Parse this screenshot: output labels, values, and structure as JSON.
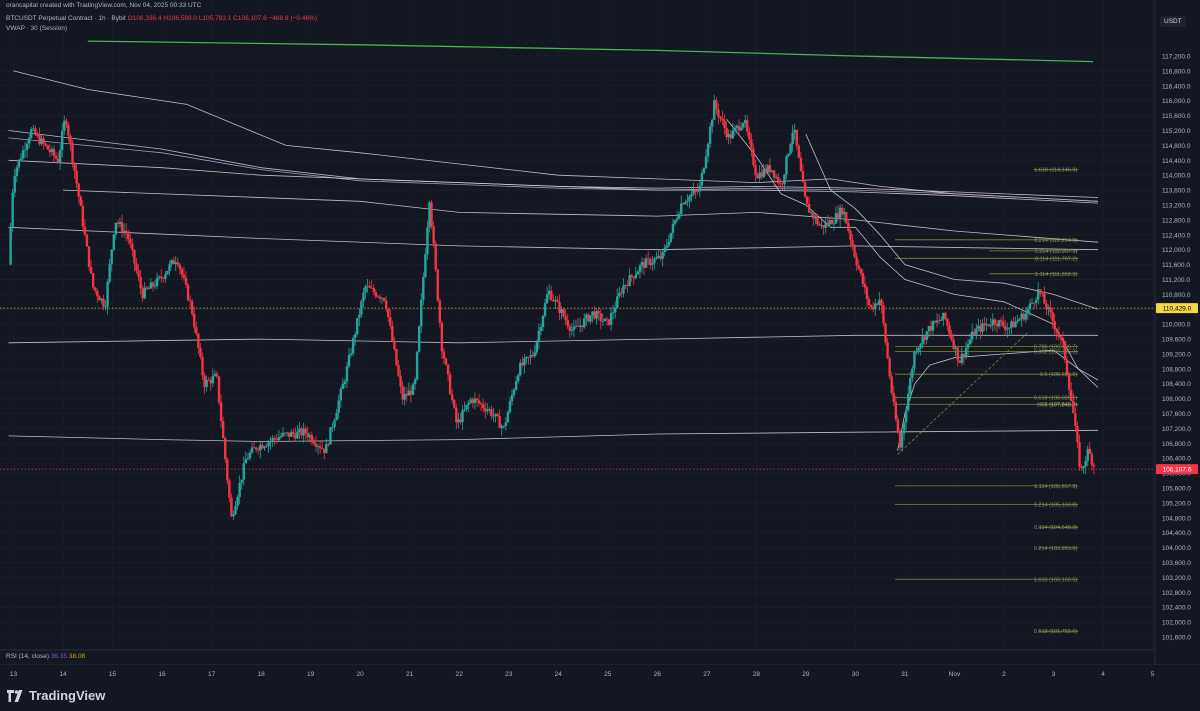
{
  "header": {
    "publisher_line": "orancapital created with TradingView.com, Nov 04, 2025 00:33 UTC",
    "symbol_line": "BTCUSDT Perpetual Contract · 1h · Bybit",
    "ohlc": "O106,336.4 H106,589.0 L105,783.1 C106,107.6 −488.8 (−0.46%)",
    "indicator_line": "VWAP · 30 (Session)",
    "currency": "USDT"
  },
  "rsi": {
    "label": "RSI (14, close)",
    "value1": "36.35",
    "value2": "38.08"
  },
  "brand": {
    "name": "TradingView"
  },
  "colors": {
    "up": "#26a69a",
    "down": "#f23645",
    "background": "#131722",
    "vwap_green": "#4caf50",
    "anchored_vwap": "#d9d9e3",
    "fib": "#9aa73a"
  },
  "chart_data": {
    "type": "candlestick",
    "title": "BTCUSDT Perpetual Contract · 1h · Bybit",
    "ylim": [
      101300,
      117600
    ],
    "y_ticks": [
      "117,200.0",
      "116,800.0",
      "116,400.0",
      "116,000.0",
      "115,600.0",
      "115,200.0",
      "114,800.0",
      "114,400.0",
      "114,000.0",
      "113,600.0",
      "113,200.0",
      "112,800.0",
      "112,400.0",
      "112,000.0",
      "111,600.0",
      "111,200.0",
      "110,800.0",
      "110,400.0",
      "110,000.0",
      "109,600.0",
      "109,200.0",
      "108,800.0",
      "108,400.0",
      "108,000.0",
      "107,600.0",
      "107,200.0",
      "106,800.0",
      "106,400.0",
      "106,000.0",
      "105,600.0",
      "105,200.0",
      "104,800.0",
      "104,400.0",
      "104,000.0",
      "103,600.0",
      "103,200.0",
      "102,800.0",
      "102,400.0",
      "102,000.0",
      "101,600.0"
    ],
    "x_ticks": [
      "13",
      "14",
      "15",
      "16",
      "17",
      "18",
      "19",
      "20",
      "21",
      "22",
      "23",
      "24",
      "25",
      "26",
      "27",
      "28",
      "29",
      "30",
      "31",
      "Nov",
      "2",
      "3",
      "4",
      "5"
    ],
    "price_labels": [
      {
        "text": "110,429.0",
        "value": 110429,
        "color": "#f5d742",
        "text_color": "#000000"
      },
      {
        "text": "106,107.6",
        "value": 106107.6,
        "color": "#f23645",
        "text_color": "#ffffff"
      }
    ],
    "anchors": [
      {
        "day": 12.9,
        "price": 111600
      },
      {
        "day": 13.0,
        "price": 114000
      },
      {
        "day": 13.35,
        "price": 115200
      },
      {
        "day": 13.9,
        "price": 114400
      },
      {
        "day": 14.05,
        "price": 115600
      },
      {
        "day": 14.25,
        "price": 114000
      },
      {
        "day": 14.6,
        "price": 111000
      },
      {
        "day": 14.85,
        "price": 110500
      },
      {
        "day": 15.05,
        "price": 112800
      },
      {
        "day": 15.3,
        "price": 112400
      },
      {
        "day": 15.6,
        "price": 110800
      },
      {
        "day": 15.95,
        "price": 111200
      },
      {
        "day": 16.3,
        "price": 111800
      },
      {
        "day": 16.6,
        "price": 110400
      },
      {
        "day": 16.85,
        "price": 108400
      },
      {
        "day": 17.1,
        "price": 108600
      },
      {
        "day": 17.4,
        "price": 104800
      },
      {
        "day": 17.7,
        "price": 106400
      },
      {
        "day": 17.9,
        "price": 106700
      },
      {
        "day": 18.4,
        "price": 107000
      },
      {
        "day": 18.9,
        "price": 107100
      },
      {
        "day": 19.3,
        "price": 106600
      },
      {
        "day": 19.7,
        "price": 108600
      },
      {
        "day": 20.1,
        "price": 111000
      },
      {
        "day": 20.5,
        "price": 110700
      },
      {
        "day": 20.85,
        "price": 108000
      },
      {
        "day": 21.1,
        "price": 108300
      },
      {
        "day": 21.4,
        "price": 113400
      },
      {
        "day": 21.65,
        "price": 109400
      },
      {
        "day": 21.95,
        "price": 107300
      },
      {
        "day": 22.25,
        "price": 108000
      },
      {
        "day": 22.6,
        "price": 107700
      },
      {
        "day": 22.9,
        "price": 107200
      },
      {
        "day": 23.2,
        "price": 108800
      },
      {
        "day": 23.5,
        "price": 109200
      },
      {
        "day": 23.8,
        "price": 110900
      },
      {
        "day": 24.3,
        "price": 109800
      },
      {
        "day": 24.7,
        "price": 110300
      },
      {
        "day": 25.0,
        "price": 110000
      },
      {
        "day": 25.3,
        "price": 111000
      },
      {
        "day": 25.7,
        "price": 111600
      },
      {
        "day": 26.1,
        "price": 111800
      },
      {
        "day": 26.5,
        "price": 113300
      },
      {
        "day": 26.85,
        "price": 113600
      },
      {
        "day": 27.15,
        "price": 115900
      },
      {
        "day": 27.45,
        "price": 115000
      },
      {
        "day": 27.75,
        "price": 115500
      },
      {
        "day": 28.0,
        "price": 114000
      },
      {
        "day": 28.3,
        "price": 114200
      },
      {
        "day": 28.5,
        "price": 113700
      },
      {
        "day": 28.75,
        "price": 115300
      },
      {
        "day": 29.0,
        "price": 113200
      },
      {
        "day": 29.3,
        "price": 112600
      },
      {
        "day": 29.55,
        "price": 112800
      },
      {
        "day": 29.75,
        "price": 113100
      },
      {
        "day": 30.0,
        "price": 111800
      },
      {
        "day": 30.3,
        "price": 110400
      },
      {
        "day": 30.5,
        "price": 110700
      },
      {
        "day": 30.75,
        "price": 108000
      },
      {
        "day": 30.9,
        "price": 106700
      },
      {
        "day": 31.2,
        "price": 109300
      },
      {
        "day": 31.5,
        "price": 109900
      },
      {
        "day": 31.8,
        "price": 110200
      },
      {
        "day": 32.1,
        "price": 109000
      },
      {
        "day": 32.4,
        "price": 109800
      },
      {
        "day": 32.8,
        "price": 110100
      },
      {
        "day": 33.1,
        "price": 109900
      },
      {
        "day": 33.45,
        "price": 110300
      },
      {
        "day": 33.7,
        "price": 110900
      },
      {
        "day": 33.95,
        "price": 110200
      },
      {
        "day": 34.2,
        "price": 109400
      },
      {
        "day": 34.4,
        "price": 107600
      },
      {
        "day": 34.55,
        "price": 106000
      },
      {
        "day": 34.7,
        "price": 106600
      },
      {
        "day": 34.85,
        "price": 106100
      }
    ],
    "seed": 7,
    "horizontal_lines": [
      {
        "value": 110429,
        "style": "dotted",
        "color": "#c9a227"
      },
      {
        "value": 106107.6,
        "style": "dotted",
        "color": "#f23645"
      }
    ],
    "vwap_green": [
      {
        "day": 14.5,
        "price": 117600
      },
      {
        "day": 20,
        "price": 117500
      },
      {
        "day": 26,
        "price": 117350
      },
      {
        "day": 30,
        "price": 117200
      },
      {
        "day": 34.8,
        "price": 117050
      }
    ],
    "anchored_vwaps": [
      {
        "points": [
          {
            "day": 13.0,
            "price": 116800
          },
          {
            "day": 14.5,
            "price": 116300
          },
          {
            "day": 16.5,
            "price": 115900
          },
          {
            "day": 18.5,
            "price": 114800
          },
          {
            "day": 20,
            "price": 114600
          },
          {
            "day": 22,
            "price": 114300
          },
          {
            "day": 24,
            "price": 114000
          },
          {
            "day": 26,
            "price": 113900
          },
          {
            "day": 28,
            "price": 113800
          },
          {
            "day": 29.5,
            "price": 113900
          },
          {
            "day": 30.5,
            "price": 113700
          },
          {
            "day": 32,
            "price": 113500
          },
          {
            "day": 34.9,
            "price": 113300
          }
        ]
      },
      {
        "points": [
          {
            "day": 12.9,
            "price": 115200
          },
          {
            "day": 16,
            "price": 114700
          },
          {
            "day": 18,
            "price": 114200
          },
          {
            "day": 20,
            "price": 113900
          },
          {
            "day": 22,
            "price": 113800
          },
          {
            "day": 24,
            "price": 113700
          },
          {
            "day": 26,
            "price": 113650
          },
          {
            "day": 28,
            "price": 113700
          },
          {
            "day": 30,
            "price": 113650
          },
          {
            "day": 32,
            "price": 113550
          },
          {
            "day": 34.9,
            "price": 113400
          }
        ]
      },
      {
        "points": [
          {
            "day": 12.9,
            "price": 115000
          },
          {
            "day": 16,
            "price": 114600
          },
          {
            "day": 18,
            "price": 114150
          },
          {
            "day": 20,
            "price": 113850
          },
          {
            "day": 22,
            "price": 113750
          },
          {
            "day": 24,
            "price": 113650
          },
          {
            "day": 26,
            "price": 113600
          },
          {
            "day": 28,
            "price": 113650
          },
          {
            "day": 30,
            "price": 113600
          },
          {
            "day": 32,
            "price": 113500
          },
          {
            "day": 34.9,
            "price": 113300
          }
        ],
        "color": "#c9a3e0"
      },
      {
        "points": [
          {
            "day": 12.9,
            "price": 114400
          },
          {
            "day": 16,
            "price": 114200
          },
          {
            "day": 18,
            "price": 114000
          },
          {
            "day": 20,
            "price": 113900
          },
          {
            "day": 22,
            "price": 113800
          },
          {
            "day": 24,
            "price": 113700
          },
          {
            "day": 26,
            "price": 113600
          },
          {
            "day": 28,
            "price": 113600
          },
          {
            "day": 30,
            "price": 113550
          },
          {
            "day": 32,
            "price": 113450
          },
          {
            "day": 34.9,
            "price": 113250
          }
        ]
      },
      {
        "points": [
          {
            "day": 14.0,
            "price": 113600
          },
          {
            "day": 20,
            "price": 113300
          },
          {
            "day": 22,
            "price": 113000
          },
          {
            "day": 26,
            "price": 112900
          },
          {
            "day": 28,
            "price": 113000
          },
          {
            "day": 30,
            "price": 112800
          },
          {
            "day": 32,
            "price": 112500
          },
          {
            "day": 34.9,
            "price": 112200
          }
        ]
      },
      {
        "points": [
          {
            "day": 12.9,
            "price": 112600
          },
          {
            "day": 18,
            "price": 112300
          },
          {
            "day": 22,
            "price": 112100
          },
          {
            "day": 26,
            "price": 112000
          },
          {
            "day": 30,
            "price": 112100
          },
          {
            "day": 34.9,
            "price": 112000
          }
        ]
      },
      {
        "points": [
          {
            "day": 12.9,
            "price": 109500
          },
          {
            "day": 18,
            "price": 109600
          },
          {
            "day": 22,
            "price": 109500
          },
          {
            "day": 26,
            "price": 109600
          },
          {
            "day": 30,
            "price": 109700
          },
          {
            "day": 34.9,
            "price": 109700
          }
        ]
      },
      {
        "points": [
          {
            "day": 12.9,
            "price": 107000
          },
          {
            "day": 16,
            "price": 106900
          },
          {
            "day": 18,
            "price": 106850
          },
          {
            "day": 22,
            "price": 106900
          },
          {
            "day": 26,
            "price": 107050
          },
          {
            "day": 30,
            "price": 107100
          },
          {
            "day": 34.9,
            "price": 107150
          }
        ]
      },
      {
        "points": [
          {
            "day": 29.0,
            "price": 115100
          },
          {
            "day": 29.5,
            "price": 113600
          },
          {
            "day": 30,
            "price": 113100
          },
          {
            "day": 30.5,
            "price": 112400
          },
          {
            "day": 31,
            "price": 111600
          },
          {
            "day": 32,
            "price": 111200
          },
          {
            "day": 33,
            "price": 111100
          },
          {
            "day": 34,
            "price": 110800
          },
          {
            "day": 34.9,
            "price": 110400
          }
        ]
      },
      {
        "points": [
          {
            "day": 27.4,
            "price": 115500
          },
          {
            "day": 28,
            "price": 114500
          },
          {
            "day": 28.5,
            "price": 113500
          },
          {
            "day": 29,
            "price": 113200
          },
          {
            "day": 29.5,
            "price": 112600
          },
          {
            "day": 30,
            "price": 112600
          },
          {
            "day": 30.5,
            "price": 111800
          },
          {
            "day": 31,
            "price": 111200
          },
          {
            "day": 32,
            "price": 110800
          },
          {
            "day": 33,
            "price": 110600
          },
          {
            "day": 34,
            "price": 110000
          },
          {
            "day": 34.5,
            "price": 108800
          },
          {
            "day": 34.9,
            "price": 108500
          }
        ]
      },
      {
        "points": [
          {
            "day": 30.85,
            "price": 106600
          },
          {
            "day": 31.0,
            "price": 107600
          },
          {
            "day": 31.2,
            "price": 108400
          },
          {
            "day": 31.5,
            "price": 108900
          },
          {
            "day": 32,
            "price": 109100
          },
          {
            "day": 33,
            "price": 109200
          },
          {
            "day": 34,
            "price": 109300
          },
          {
            "day": 34.5,
            "price": 108800
          },
          {
            "day": 34.9,
            "price": 108300
          }
        ]
      }
    ],
    "trend_line": {
      "from": {
        "day": 30.85,
        "price": 106500
      },
      "to": {
        "day": 33.5,
        "price": 109800
      },
      "color": "#6b8e23"
    },
    "fib_levels": [
      {
        "label": "1.618 (114,146.9)",
        "value": 114146.9,
        "from": 33.6,
        "to": 34.5
      },
      {
        "label": "0.214 (112,264.0)",
        "value": 112264.0,
        "from": 30.8,
        "to": 34.5
      },
      {
        "label": "1.214 (111,967.3)",
        "value": 111967.3,
        "from": 32.7,
        "to": 34.5
      },
      {
        "label": "0.114 (111,767.2)",
        "value": 111767.2,
        "from": 30.8,
        "to": 34.5
      },
      {
        "label": "1.114 (111,352.3)",
        "value": 111352.3,
        "from": 32.7,
        "to": 34.5
      },
      {
        "label": "0.786 (109,400.7)",
        "value": 109400.7,
        "from": 30.8,
        "to": 34.5
      },
      {
        "label": "0.382 (109,265.3)",
        "value": 109265.3,
        "from": 30.8,
        "to": 34.5
      },
      {
        "label": "0.5 (108,656.5)",
        "value": 108656.5,
        "from": 30.8,
        "to": 34.5
      },
      {
        "label": "0.618 (108,028.1)",
        "value": 108028.1,
        "from": 30.8,
        "to": 34.5
      },
      {
        "label": "0.5 (107,849.8)",
        "value": 107849.8,
        "from": 33.7,
        "to": 34.5
      },
      {
        "label": "0.65 (107,848.5)",
        "value": 107848.5,
        "from": 30.8,
        "to": 34.5
      },
      {
        "label": "1.114 (105,657.9)",
        "value": 105657.9,
        "from": 30.8,
        "to": 34.5
      },
      {
        "label": "1.214 (105,160.8)",
        "value": 105160.8,
        "from": 30.8,
        "to": 34.5
      },
      {
        "label": "0.114 (104,548.3)",
        "value": 104548.3,
        "from": 33.7,
        "to": 34.5
      },
      {
        "label": "0.214 (103,993.0)",
        "value": 103993.0,
        "from": 33.7,
        "to": 34.5
      },
      {
        "label": "1.618 (103,150.5)",
        "value": 103150.5,
        "from": 30.8,
        "to": 34.5
      },
      {
        "label": "0.618 (101,755.6)",
        "value": 101755.6,
        "from": 33.7,
        "to": 34.5
      }
    ]
  }
}
